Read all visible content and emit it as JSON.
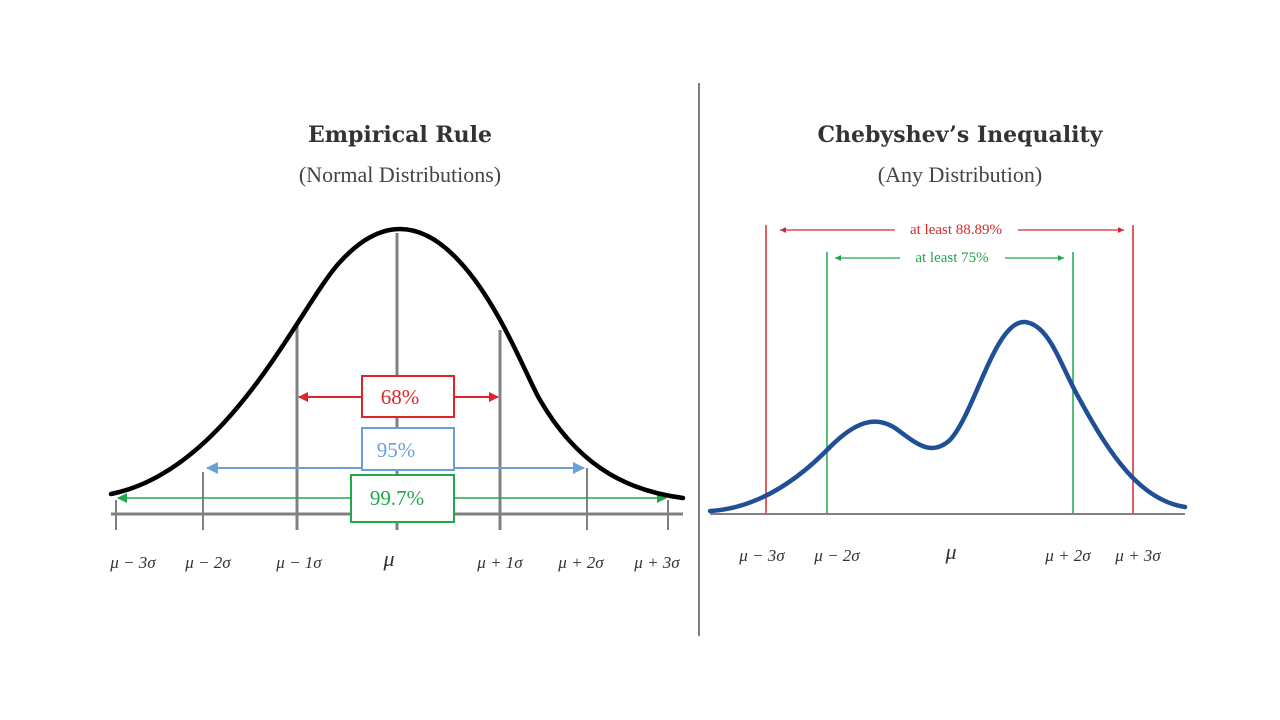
{
  "left_panel": {
    "title": "Empirical Rule",
    "subtitle": "(Normal Distributions)",
    "labels": {
      "p68": "68%",
      "p95": "95%",
      "p997": "99.7%"
    },
    "ticks": [
      "μ − 3σ",
      "μ − 2σ",
      "μ − 1σ",
      "μ",
      "μ + 1σ",
      "μ + 2σ",
      "μ + 3σ"
    ],
    "colors": {
      "curve": "#000000",
      "one_sigma": "#e0242c",
      "two_sigma": "#6a9fd8",
      "three_sigma": "#22a84a"
    }
  },
  "right_panel": {
    "title": "Chebyshev’s Inequality",
    "subtitle": "(Any Distribution)",
    "labels": {
      "k3": "at least 88.89%",
      "k2": "at least 75%"
    },
    "ticks": [
      "μ − 3σ",
      "μ − 2σ",
      "μ",
      "μ + 2σ",
      "μ + 3σ"
    ],
    "colors": {
      "curve": "#1f4f96",
      "k3_lines": "#d62a2a",
      "k2_lines": "#1fa84a"
    }
  }
}
